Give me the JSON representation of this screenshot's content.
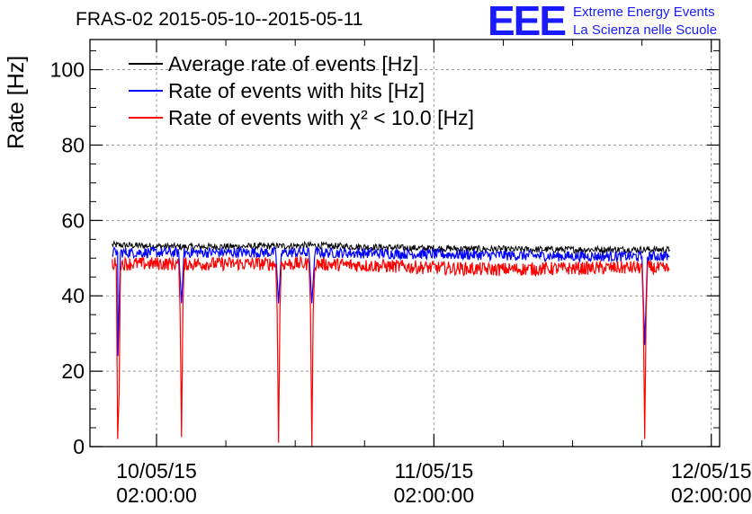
{
  "chart_data": {
    "type": "line",
    "title": "FRAS-02 2015-05-10--2015-05-11",
    "xlabel": "",
    "ylabel": "Rate [Hz]",
    "ylim": [
      0,
      108
    ],
    "xlim": [
      -0.24,
      2.03
    ],
    "grid": true,
    "legend": "top-left",
    "y_ticks": [
      0,
      20,
      40,
      60,
      80,
      100
    ],
    "x_ticks": [
      {
        "value": 0,
        "label": "10/05/15",
        "label2": "02:00:00"
      },
      {
        "value": 1,
        "label": "11/05/15",
        "label2": "02:00:00"
      },
      {
        "value": 2,
        "label": "12/05/15",
        "label2": "02:00:00"
      }
    ],
    "x_units": "days since 10/05/15 02:00:00",
    "series": [
      {
        "name": "Average rate of events [Hz]",
        "color": "#000000",
        "x": [
          -0.16,
          0.1,
          0.45,
          0.55,
          0.9,
          1.3,
          1.75,
          1.85
        ],
        "y": [
          53.5,
          53.0,
          53.2,
          53.4,
          52.7,
          52.3,
          52.3,
          52.2
        ]
      },
      {
        "name": "Rate of events with hits [Hz]",
        "color": "#0000ff",
        "x": [
          -0.16,
          -0.14,
          -0.139,
          -0.13,
          0.08,
          0.09,
          0.1,
          0.43,
          0.44,
          0.45,
          0.55,
          0.56,
          0.57,
          1.5,
          1.75,
          1.76,
          1.77,
          1.85
        ],
        "y": [
          51.5,
          51.5,
          24,
          51.5,
          51.5,
          38,
          51.5,
          51.5,
          38,
          51.5,
          51.5,
          38,
          51.5,
          50.5,
          50.5,
          27,
          50.5,
          50.5
        ]
      },
      {
        "name": "Rate of events with χ² < 10.0 [Hz]",
        "color": "#ff0000",
        "x": [
          -0.16,
          -0.145,
          -0.14,
          -0.135,
          -0.13,
          0.08,
          0.085,
          0.09,
          0.095,
          0.1,
          0.43,
          0.435,
          0.44,
          0.445,
          0.45,
          0.55,
          0.555,
          0.56,
          0.565,
          0.57,
          1.2,
          1.75,
          1.755,
          1.76,
          1.765,
          1.77,
          1.85
        ],
        "y": [
          48.5,
          48.5,
          2,
          14,
          48.5,
          48.5,
          36,
          2.5,
          36,
          48.5,
          48.5,
          36,
          1,
          36,
          48.5,
          48.5,
          36,
          0,
          36,
          48.5,
          47,
          47.5,
          36,
          2,
          36,
          47.5,
          47
        ]
      }
    ]
  },
  "logo": {
    "mark": "EEE",
    "line1": "Extreme Energy Events",
    "line2": "La Scienza nelle Scuole",
    "color": "#1a1aff"
  }
}
